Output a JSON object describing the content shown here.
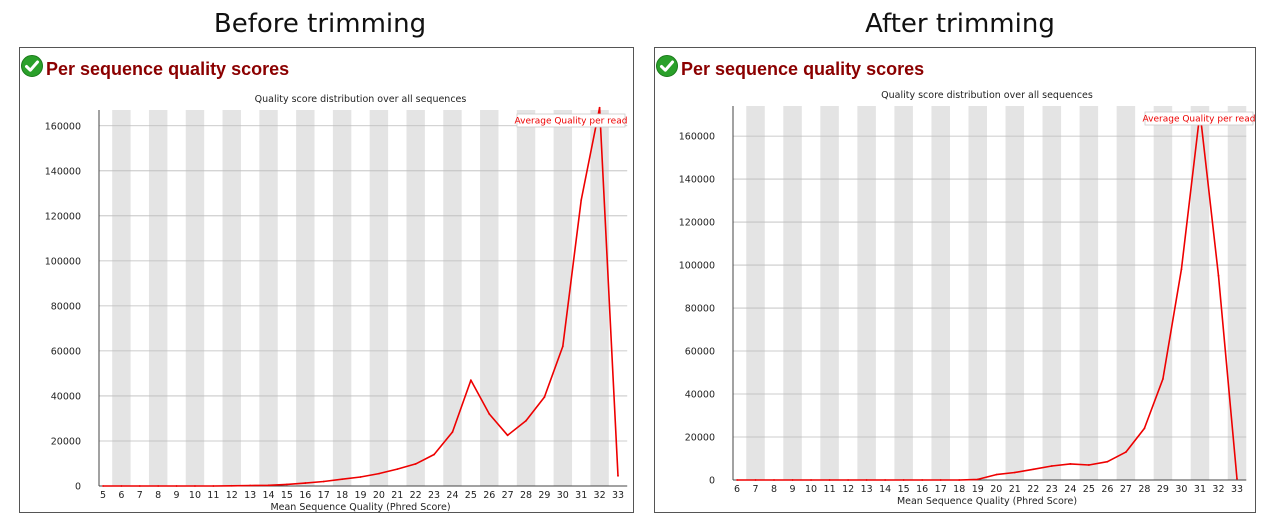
{
  "headings": {
    "left": "Before trimming",
    "right": "After trimming"
  },
  "colors": {
    "line": "#ee0000",
    "title": "#8b0000",
    "band": "#e4e4e4",
    "grid": "#bbbbbb",
    "check": "#2aa02a"
  },
  "panels": [
    {
      "module_title": "Per sequence quality scores",
      "status_icon": "check-icon"
    },
    {
      "module_title": "Per sequence quality scores",
      "status_icon": "check-icon"
    }
  ],
  "chart_data": [
    {
      "type": "line",
      "title": "Quality score distribution over all sequences",
      "xlabel": "Mean Sequence Quality (Phred Score)",
      "ylabel": "",
      "ylim": [
        0,
        167000
      ],
      "yticks": [
        0,
        20000,
        40000,
        60000,
        80000,
        100000,
        120000,
        140000,
        160000
      ],
      "grid": true,
      "legend_position": "top-right",
      "categories": [
        "5",
        "6",
        "7",
        "8",
        "9",
        "10",
        "11",
        "12",
        "13",
        "14",
        "15",
        "16",
        "17",
        "18",
        "19",
        "20",
        "21",
        "22",
        "23",
        "24",
        "25",
        "26",
        "27",
        "28",
        "29",
        "30",
        "31",
        "32",
        "33"
      ],
      "series": [
        {
          "name": "Average Quality per read",
          "values": [
            0,
            0,
            0,
            0,
            0,
            0,
            0,
            100,
            200,
            300,
            700,
            1300,
            2000,
            3000,
            4000,
            5500,
            7500,
            9800,
            14000,
            24000,
            47000,
            32000,
            22500,
            29000,
            39500,
            62000,
            127000,
            168000,
            4500
          ]
        }
      ]
    },
    {
      "type": "line",
      "title": "Quality score distribution over all sequences",
      "xlabel": "Mean Sequence Quality (Phred Score)",
      "ylabel": "",
      "ylim": [
        0,
        174000
      ],
      "yticks": [
        0,
        20000,
        40000,
        60000,
        80000,
        100000,
        120000,
        140000,
        160000
      ],
      "grid": true,
      "legend_position": "top-right",
      "categories": [
        "6",
        "7",
        "8",
        "9",
        "10",
        "11",
        "12",
        "13",
        "14",
        "15",
        "16",
        "17",
        "18",
        "19",
        "20",
        "21",
        "22",
        "23",
        "24",
        "25",
        "26",
        "27",
        "28",
        "29",
        "30",
        "31",
        "32",
        "33"
      ],
      "series": [
        {
          "name": "Average Quality per read",
          "values": [
            0,
            0,
            0,
            0,
            0,
            0,
            0,
            0,
            0,
            0,
            0,
            0,
            0,
            300,
            2500,
            3500,
            5000,
            6500,
            7500,
            7000,
            8500,
            13000,
            24000,
            47000,
            98000,
            171000,
            95000,
            500
          ]
        }
      ]
    }
  ]
}
